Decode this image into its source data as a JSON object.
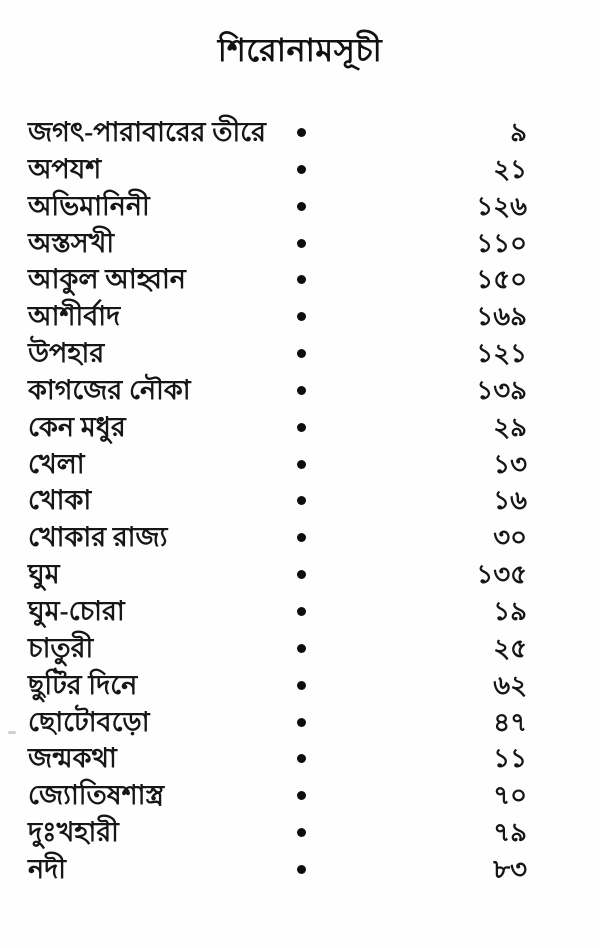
{
  "toc": {
    "heading": "শিরোনামসূচী",
    "separator_icon": "dot",
    "entries": [
      {
        "title": "জগৎ-পারাবারের তীরে",
        "page": "৯"
      },
      {
        "title": "অপযশ",
        "page": "২১"
      },
      {
        "title": "অভিমানিনী",
        "page": "১২৬"
      },
      {
        "title": "অস্তসখী",
        "page": "১১০"
      },
      {
        "title": "আকুল আহ্বান",
        "page": "১৫০"
      },
      {
        "title": "আশীর্বাদ",
        "page": "১৬৯"
      },
      {
        "title": "উপহার",
        "page": "১২১"
      },
      {
        "title": "কাগজের নৌকা",
        "page": "১৩৯"
      },
      {
        "title": "কেন মধুর",
        "page": "২৯"
      },
      {
        "title": "খেলা",
        "page": "১৩"
      },
      {
        "title": "খোকা",
        "page": "১৬"
      },
      {
        "title": "খোকার রাজ্য",
        "page": "৩০"
      },
      {
        "title": "ঘুম",
        "page": "১৩৫"
      },
      {
        "title": "ঘুম-চোরা",
        "page": "১৯"
      },
      {
        "title": "চাতুরী",
        "page": "২৫"
      },
      {
        "title": "ছুটির দিনে",
        "page": "৬২"
      },
      {
        "title": "ছোটোবড়ো",
        "page": "৪৭"
      },
      {
        "title": "জন্মকথা",
        "page": "১১"
      },
      {
        "title": "জ্যোতিষশাস্ত্র",
        "page": "৭০"
      },
      {
        "title": "দুঃখহারী",
        "page": "৭৯"
      },
      {
        "title": "নদী",
        "page": "৮৩"
      }
    ]
  },
  "colors": {
    "background": "#fefefe",
    "ink": "#161616"
  }
}
